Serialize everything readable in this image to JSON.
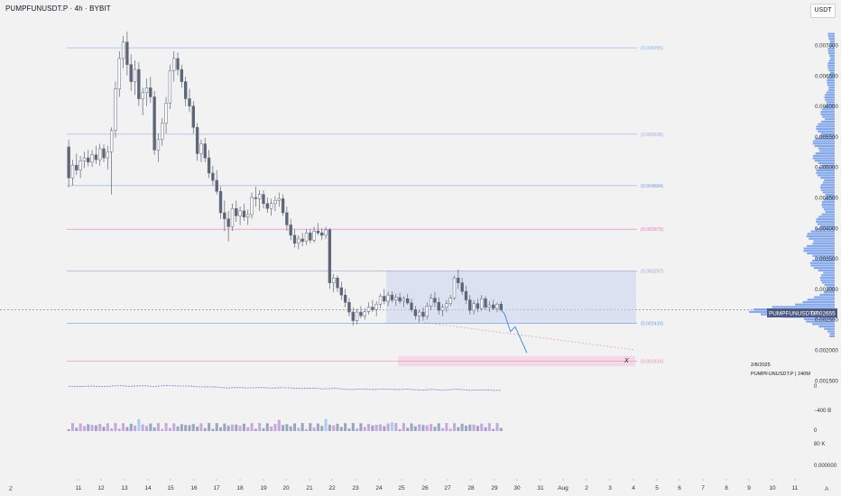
{
  "header": {
    "title": "PUMPFUNUSDT.P · 4h · BYBIT",
    "currency": "USDT"
  },
  "price_tag": {
    "symbol": "PUMPFUNUSDT.P",
    "value": "0.002655"
  },
  "fib_levels": [
    {
      "value": 0.006955,
      "label": "(0.006955)",
      "color": "#8ab4f0"
    },
    {
      "value": 0.005538,
      "label": "(0.005538)",
      "color": "#b79ce8"
    },
    {
      "value": 0.004694,
      "label": "(0.004694)",
      "color": "#6f9be6"
    },
    {
      "value": 0.003979,
      "label": "(0.003979)",
      "color": "#e879c5"
    },
    {
      "value": 0.003297,
      "label": "(0.003297)",
      "color": "#9aa8c8"
    },
    {
      "value": 0.002433,
      "label": "(0.002433)",
      "color": "#6f9be6"
    },
    {
      "value": 0.001816,
      "label": "(0.001816)",
      "color": "#e38fb0"
    }
  ],
  "annotations": {
    "x_mark": "X",
    "date_info": "2/8/2025",
    "symbol_tf": "PUMPFUNUSDT.P | 240M"
  },
  "indicator_axis": [
    "0",
    "−400 B",
    "0",
    "80 K",
    "0.000000"
  ],
  "corner_left": "Z",
  "corner_right": "A",
  "chart_data": {
    "type": "candlestick",
    "title": "PUMPFUNUSDT.P · 4h · BYBIT",
    "ylim": [
      0.0,
      0.0072
    ],
    "y_ticks": [
      "0.007000",
      "0.006500",
      "0.006000",
      "0.005500",
      "0.005000",
      "0.004500",
      "0.004000",
      "0.003500",
      "0.003000",
      "0.002500",
      "0.002000",
      "0.001500"
    ],
    "x_ticks": [
      "11",
      "12",
      "13",
      "14",
      "15",
      "16",
      "17",
      "18",
      "19",
      "20",
      "21",
      "22",
      "23",
      "24",
      "25",
      "26",
      "27",
      "28",
      "29",
      "30",
      "31",
      "Aug",
      "2",
      "3",
      "4",
      "5",
      "6",
      "7",
      "8",
      "9",
      "10",
      "11"
    ],
    "current_price": 0.002655,
    "colors": {
      "up": "#ffffff",
      "down": "#5d6678",
      "wick": "#5d6678"
    },
    "candles": [
      [
        0.00533,
        0.00545,
        0.00467,
        0.00482
      ],
      [
        0.00482,
        0.00512,
        0.0047,
        0.00503
      ],
      [
        0.00503,
        0.00522,
        0.00487,
        0.00495
      ],
      [
        0.00495,
        0.00518,
        0.00482,
        0.0051
      ],
      [
        0.0051,
        0.00525,
        0.00498,
        0.00515
      ],
      [
        0.00515,
        0.00528,
        0.00501,
        0.00508
      ],
      [
        0.00508,
        0.00528,
        0.005,
        0.0052
      ],
      [
        0.0052,
        0.00535,
        0.00505,
        0.00512
      ],
      [
        0.00512,
        0.00538,
        0.00502,
        0.0053
      ],
      [
        0.0053,
        0.00537,
        0.00508,
        0.00515
      ],
      [
        0.00515,
        0.00535,
        0.00496,
        0.00525
      ],
      [
        0.00525,
        0.00565,
        0.00455,
        0.0056
      ],
      [
        0.0056,
        0.0064,
        0.00548,
        0.00628
      ],
      [
        0.00628,
        0.0069,
        0.00615,
        0.00678
      ],
      [
        0.00678,
        0.00715,
        0.00662,
        0.00705
      ],
      [
        0.00705,
        0.00722,
        0.0065,
        0.00668
      ],
      [
        0.00668,
        0.00685,
        0.00625,
        0.0064
      ],
      [
        0.0064,
        0.00675,
        0.00618,
        0.0066
      ],
      [
        0.0066,
        0.00672,
        0.006,
        0.00612
      ],
      [
        0.00612,
        0.0063,
        0.00585,
        0.00622
      ],
      [
        0.00622,
        0.00645,
        0.006,
        0.0063
      ],
      [
        0.0063,
        0.00648,
        0.00605,
        0.00615
      ],
      [
        0.00615,
        0.00625,
        0.0052,
        0.00528
      ],
      [
        0.00528,
        0.00555,
        0.00508,
        0.00545
      ],
      [
        0.00545,
        0.0058,
        0.00535,
        0.00572
      ],
      [
        0.00572,
        0.00615,
        0.00555,
        0.00605
      ],
      [
        0.00605,
        0.00668,
        0.00595,
        0.00658
      ],
      [
        0.00658,
        0.0069,
        0.0064,
        0.00678
      ],
      [
        0.00678,
        0.00688,
        0.0065,
        0.0066
      ],
      [
        0.0066,
        0.00668,
        0.0063,
        0.0064
      ],
      [
        0.0064,
        0.00648,
        0.006,
        0.00612
      ],
      [
        0.00612,
        0.00628,
        0.0059,
        0.006
      ],
      [
        0.006,
        0.00608,
        0.00555,
        0.00565
      ],
      [
        0.00565,
        0.00572,
        0.0051,
        0.00522
      ],
      [
        0.00522,
        0.00545,
        0.00508,
        0.00538
      ],
      [
        0.00538,
        0.00548,
        0.00508,
        0.00515
      ],
      [
        0.00515,
        0.00528,
        0.00482,
        0.0049
      ],
      [
        0.0049,
        0.00502,
        0.0047,
        0.00478
      ],
      [
        0.00478,
        0.00495,
        0.00455,
        0.0046
      ],
      [
        0.0046,
        0.00468,
        0.00415,
        0.00425
      ],
      [
        0.00425,
        0.00445,
        0.00395,
        0.00415
      ],
      [
        0.00415,
        0.00428,
        0.00378,
        0.00402
      ],
      [
        0.00402,
        0.0044,
        0.00395,
        0.00432
      ],
      [
        0.00432,
        0.00445,
        0.0041,
        0.0042
      ],
      [
        0.0042,
        0.00435,
        0.00405,
        0.00428
      ],
      [
        0.00428,
        0.0044,
        0.00412,
        0.00418
      ],
      [
        0.00418,
        0.0043,
        0.00405,
        0.00422
      ],
      [
        0.00422,
        0.00458,
        0.00415,
        0.0045
      ],
      [
        0.0045,
        0.00468,
        0.00435,
        0.00448
      ],
      [
        0.00448,
        0.00462,
        0.00428,
        0.00455
      ],
      [
        0.00455,
        0.00462,
        0.00432,
        0.0044
      ],
      [
        0.0044,
        0.0045,
        0.00425,
        0.00432
      ],
      [
        0.00432,
        0.00448,
        0.0042,
        0.0044
      ],
      [
        0.0044,
        0.00452,
        0.00428,
        0.00445
      ],
      [
        0.00445,
        0.00458,
        0.00435,
        0.00448
      ],
      [
        0.00448,
        0.00455,
        0.0042,
        0.00425
      ],
      [
        0.00425,
        0.00435,
        0.00395,
        0.00405
      ],
      [
        0.00405,
        0.00415,
        0.0038,
        0.00388
      ],
      [
        0.00388,
        0.00398,
        0.00368,
        0.00375
      ],
      [
        0.00375,
        0.00388,
        0.00365,
        0.00382
      ],
      [
        0.00382,
        0.00392,
        0.0037,
        0.00378
      ],
      [
        0.00378,
        0.00398,
        0.00372,
        0.00392
      ],
      [
        0.00392,
        0.00398,
        0.00375,
        0.0038
      ],
      [
        0.0038,
        0.00402,
        0.00376,
        0.00395
      ],
      [
        0.00395,
        0.00408,
        0.00388,
        0.00392
      ],
      [
        0.00392,
        0.004,
        0.0038,
        0.00388
      ],
      [
        0.00388,
        0.00402,
        0.00382,
        0.00397
      ],
      [
        0.00397,
        0.004,
        0.003,
        0.0031
      ],
      [
        0.0031,
        0.00325,
        0.00295,
        0.00318
      ],
      [
        0.00318,
        0.00322,
        0.00295,
        0.00302
      ],
      [
        0.00302,
        0.00312,
        0.00282,
        0.0029
      ],
      [
        0.0029,
        0.003,
        0.0027,
        0.00278
      ],
      [
        0.00278,
        0.00285,
        0.00255,
        0.00262
      ],
      [
        0.00262,
        0.0027,
        0.0024,
        0.00248
      ],
      [
        0.00248,
        0.00268,
        0.00242,
        0.00262
      ],
      [
        0.00262,
        0.00272,
        0.00252,
        0.00256
      ],
      [
        0.00256,
        0.00268,
        0.0025,
        0.00263
      ],
      [
        0.00263,
        0.00278,
        0.00258,
        0.0027
      ],
      [
        0.0027,
        0.00282,
        0.00262,
        0.00266
      ],
      [
        0.00266,
        0.0028,
        0.00255,
        0.00275
      ],
      [
        0.00275,
        0.00292,
        0.00268,
        0.00288
      ],
      [
        0.00288,
        0.003,
        0.00275,
        0.0028
      ],
      [
        0.0028,
        0.00295,
        0.00272,
        0.0029
      ],
      [
        0.0029,
        0.00296,
        0.00278,
        0.00282
      ],
      [
        0.00282,
        0.00292,
        0.00272,
        0.00286
      ],
      [
        0.00286,
        0.00294,
        0.00276,
        0.0028
      ],
      [
        0.0028,
        0.00288,
        0.0027,
        0.00284
      ],
      [
        0.00284,
        0.00292,
        0.00274,
        0.00277
      ],
      [
        0.00277,
        0.00284,
        0.00262,
        0.00266
      ],
      [
        0.00266,
        0.00272,
        0.0025,
        0.00256
      ],
      [
        0.00256,
        0.00266,
        0.00245,
        0.00262
      ],
      [
        0.00262,
        0.0027,
        0.00248,
        0.00255
      ],
      [
        0.00255,
        0.00278,
        0.0025,
        0.00272
      ],
      [
        0.00272,
        0.00292,
        0.00265,
        0.00285
      ],
      [
        0.00285,
        0.00295,
        0.0027,
        0.00278
      ],
      [
        0.00278,
        0.00286,
        0.00258,
        0.00265
      ],
      [
        0.00265,
        0.00275,
        0.00255,
        0.0027
      ],
      [
        0.0027,
        0.00282,
        0.00262,
        0.00276
      ],
      [
        0.00276,
        0.0029,
        0.00272,
        0.00285
      ],
      [
        0.00285,
        0.00322,
        0.00282,
        0.00318
      ],
      [
        0.00318,
        0.00332,
        0.003,
        0.0031
      ],
      [
        0.0031,
        0.00318,
        0.0029,
        0.00296
      ],
      [
        0.00296,
        0.00305,
        0.00275,
        0.00282
      ],
      [
        0.00282,
        0.0029,
        0.00258,
        0.00265
      ],
      [
        0.00265,
        0.00282,
        0.00258,
        0.00276
      ],
      [
        0.00276,
        0.00284,
        0.00262,
        0.00268
      ],
      [
        0.00268,
        0.0029,
        0.00264,
        0.00284
      ],
      [
        0.00284,
        0.00288,
        0.00265,
        0.0027
      ],
      [
        0.0027,
        0.0028,
        0.00262,
        0.00274
      ],
      [
        0.00274,
        0.00282,
        0.00265,
        0.00268
      ],
      [
        0.00268,
        0.00278,
        0.00262,
        0.00275
      ],
      [
        0.00275,
        0.0028,
        0.00264,
        0.00266
      ]
    ],
    "projection": [
      [
        0.002655,
        0
      ],
      [
        0.00259,
        3
      ],
      [
        0.0023,
        8
      ],
      [
        0.00238,
        12
      ],
      [
        0.00195,
        22
      ]
    ],
    "volume_profile_note": "horizontal volume profile on right, peak near 0.00265"
  }
}
